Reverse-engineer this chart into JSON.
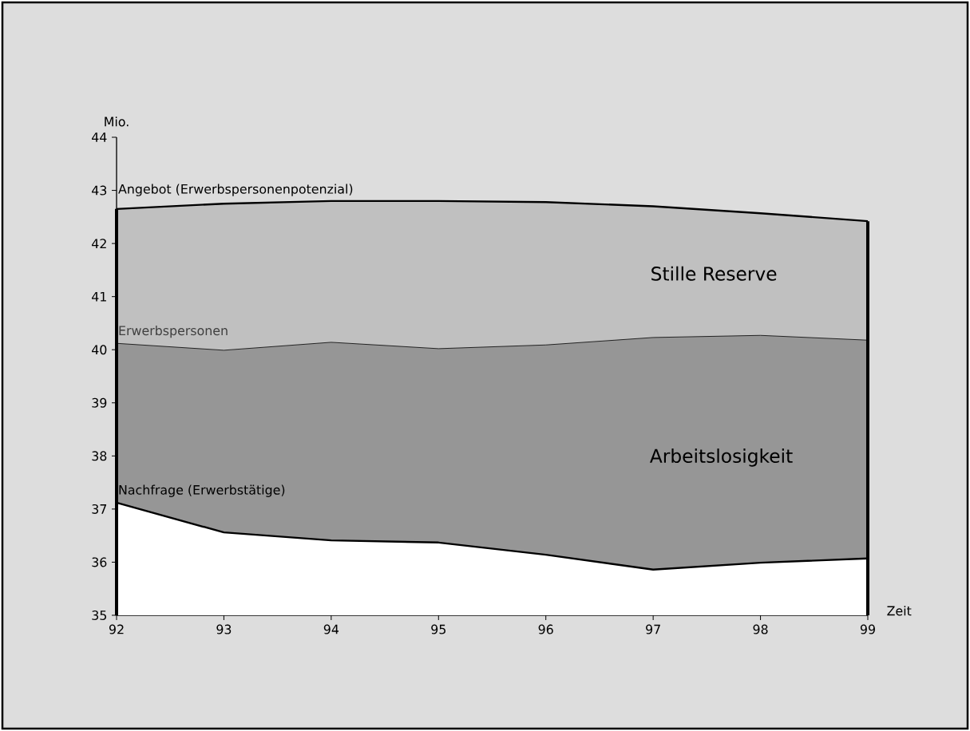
{
  "chart_data": {
    "type": "area",
    "xlabel": "Zeit",
    "ylabel": "Mio.",
    "x": [
      92,
      93,
      94,
      95,
      96,
      97,
      98,
      99
    ],
    "series": [
      {
        "name": "Angebot (Erwerbspersonenpotenzial)",
        "color": "#c0c0c0",
        "values": [
          42.65,
          42.75,
          42.8,
          42.8,
          42.78,
          42.7,
          42.57,
          42.42
        ]
      },
      {
        "name": "Erwerbspersonen",
        "color": "#969696",
        "values": [
          40.12,
          39.99,
          40.14,
          40.02,
          40.09,
          40.23,
          40.27,
          40.18
        ]
      },
      {
        "name": "Nachfrage (Erwerbstätige)",
        "color": "#ffffff",
        "values": [
          37.12,
          36.56,
          36.41,
          36.37,
          36.14,
          35.86,
          35.99,
          36.07
        ]
      }
    ],
    "annotations": [
      "Stille Reserve",
      "Arbeitslosigkeit"
    ],
    "xlim": [
      92,
      99
    ],
    "ylim": [
      35,
      44
    ],
    "xticks": [
      92,
      93,
      94,
      95,
      96,
      97,
      98,
      99
    ],
    "yticks": [
      35,
      36,
      37,
      38,
      39,
      40,
      41,
      42,
      43,
      44
    ],
    "grid": false,
    "legend": false
  }
}
